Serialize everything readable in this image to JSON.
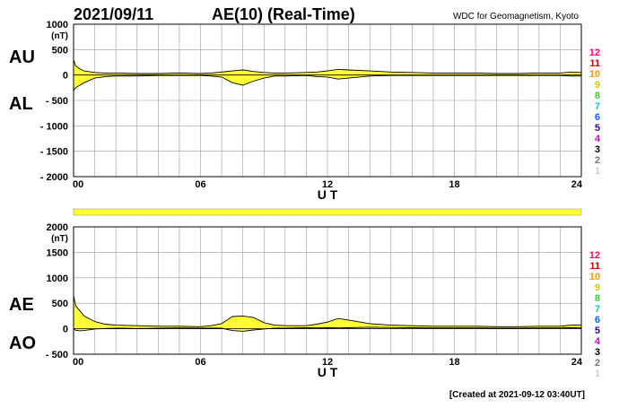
{
  "header": {
    "date": "2021/09/11",
    "title": "AE(10) (Real-Time)",
    "source": "WDC for Geomagnetism, Kyoto"
  },
  "footer": {
    "created": "[Created at 2021-09-12 03:40UT]"
  },
  "colors": {
    "fill": "#ffff33",
    "grid": "#999999",
    "bar": "#ffff33",
    "stations": [
      "#cccccc",
      "#777777",
      "#000000",
      "#cc00cc",
      "#330099",
      "#0066ff",
      "#00cccc",
      "#33cc33",
      "#cccc00",
      "#ff9900",
      "#cc0000",
      "#ff0066"
    ]
  },
  "station_labels": [
    "1",
    "2",
    "3",
    "4",
    "5",
    "6",
    "7",
    "8",
    "9",
    "10",
    "11",
    "12"
  ],
  "chart_data": [
    {
      "type": "area",
      "unit": "(nT)",
      "side_labels": {
        "upper": "AU",
        "lower": "AL"
      },
      "xlabel": "U T",
      "xticks": [
        "00",
        "06",
        "12",
        "18",
        "24"
      ],
      "xlim": [
        0,
        24
      ],
      "yticks": [
        "1000",
        "500",
        "0",
        "- 500",
        "- 1000",
        "- 1500",
        "- 2000"
      ],
      "ylim": [
        -2000,
        1000
      ],
      "grid": true,
      "series": [
        {
          "name": "AU",
          "x": [
            0,
            0.1,
            0.3,
            0.5,
            1,
            1.5,
            2,
            3,
            4,
            5,
            6,
            6.5,
            7,
            7.5,
            8,
            8.5,
            9,
            9.5,
            10,
            11,
            11.5,
            12,
            12.5,
            13,
            14,
            15,
            16,
            17,
            18,
            19,
            20,
            21,
            22,
            23,
            23.5,
            24
          ],
          "y": [
            300,
            180,
            120,
            80,
            50,
            40,
            40,
            30,
            30,
            40,
            30,
            40,
            60,
            80,
            100,
            70,
            50,
            40,
            40,
            50,
            60,
            80,
            110,
            100,
            80,
            60,
            50,
            40,
            40,
            40,
            30,
            30,
            40,
            40,
            60,
            50
          ]
        },
        {
          "name": "AL",
          "x": [
            0,
            0.1,
            0.3,
            0.5,
            1,
            1.5,
            2,
            3,
            4,
            5,
            6,
            6.5,
            7,
            7.5,
            8,
            8.5,
            9,
            9.5,
            10,
            11,
            11.5,
            12,
            12.5,
            13,
            14,
            15,
            16,
            17,
            18,
            19,
            20,
            21,
            22,
            23,
            23.5,
            24
          ],
          "y": [
            -300,
            -250,
            -200,
            -150,
            -60,
            -30,
            -20,
            -20,
            -10,
            -10,
            -10,
            -20,
            -40,
            -150,
            -200,
            -120,
            -60,
            -20,
            -20,
            -10,
            -30,
            -40,
            -80,
            -60,
            -20,
            -10,
            -10,
            -10,
            -10,
            -10,
            -10,
            -10,
            -10,
            -10,
            -20,
            -20
          ]
        }
      ]
    },
    {
      "type": "area",
      "unit": "(nT)",
      "side_labels": {
        "upper": "AE",
        "lower": "AO"
      },
      "xlabel": "U T",
      "xticks": [
        "00",
        "06",
        "12",
        "18",
        "24"
      ],
      "xlim": [
        0,
        24
      ],
      "yticks": [
        "2000",
        "1500",
        "1000",
        "500",
        "0",
        "- 500"
      ],
      "ylim": [
        -500,
        2000
      ],
      "grid": true,
      "series": [
        {
          "name": "AE",
          "x": [
            0,
            0.1,
            0.3,
            0.5,
            1,
            1.5,
            2,
            3,
            4,
            5,
            6,
            6.5,
            7,
            7.5,
            8,
            8.5,
            9,
            9.5,
            10,
            11,
            11.5,
            12,
            12.5,
            13,
            14,
            15,
            16,
            17,
            18,
            19,
            20,
            21,
            22,
            23,
            23.5,
            24
          ],
          "y": [
            650,
            450,
            350,
            250,
            140,
            90,
            70,
            60,
            50,
            50,
            40,
            60,
            100,
            240,
            250,
            220,
            120,
            70,
            60,
            60,
            90,
            130,
            200,
            170,
            100,
            70,
            60,
            50,
            50,
            50,
            40,
            40,
            50,
            50,
            70,
            70
          ]
        },
        {
          "name": "AO",
          "x": [
            0,
            0.1,
            0.3,
            0.5,
            1,
            1.5,
            2,
            3,
            4,
            5,
            6,
            6.5,
            7,
            7.5,
            8,
            8.5,
            9,
            9.5,
            10,
            11,
            11.5,
            12,
            12.5,
            13,
            14,
            15,
            16,
            17,
            18,
            19,
            20,
            21,
            22,
            23,
            23.5,
            24
          ],
          "y": [
            0,
            -30,
            -40,
            -35,
            -5,
            5,
            10,
            5,
            10,
            15,
            10,
            10,
            10,
            -35,
            -50,
            -25,
            -5,
            10,
            10,
            20,
            15,
            20,
            15,
            20,
            30,
            25,
            20,
            15,
            15,
            15,
            10,
            10,
            15,
            15,
            20,
            15
          ]
        }
      ]
    }
  ]
}
